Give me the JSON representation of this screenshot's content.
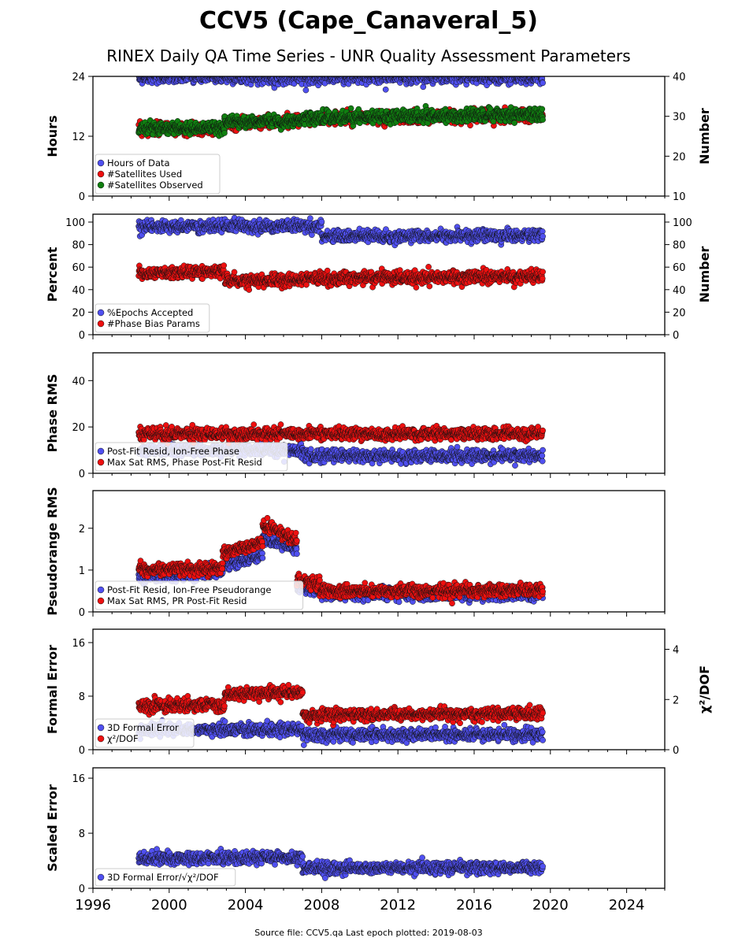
{
  "title": "CCV5 (Cape_Canaveral_5)",
  "subtitle": "RINEX Daily QA Time Series - UNR Quality Assessment Parameters",
  "footer": "Source file: CCV5.qa Last epoch plotted: 2019-08-03",
  "colors": {
    "blue": "#5050f0",
    "red": "#ee1010",
    "green": "#108010",
    "edge": "#111111"
  },
  "chart_data": [
    {
      "type": "scatter",
      "ylabel": "Hours",
      "y2label": "Number",
      "xlim": [
        1996,
        2026
      ],
      "xticks": [
        1996,
        2000,
        2004,
        2008,
        2012,
        2016,
        2020,
        2024
      ],
      "ylim": [
        0,
        24
      ],
      "yticks": [
        0,
        12,
        24
      ],
      "y2lim": [
        10,
        40
      ],
      "y2ticks": [
        10,
        20,
        30,
        40
      ],
      "legend_position": "lower-left",
      "series": [
        {
          "name": "Hours of Data",
          "color": "#5050f0",
          "axis": "left",
          "segments": [
            {
              "x": [
                1998.4,
                2019.6
              ],
              "y": [
                23.8,
                23.8
              ]
            }
          ]
        },
        {
          "name": "#Satellites Used",
          "color": "#ee1010",
          "axis": "right",
          "segments": [
            {
              "x": [
                1998.4,
                2002.9
              ],
              "y": [
                26.8,
                26.8
              ]
            },
            {
              "x": [
                2002.9,
                2007.0
              ],
              "y": [
                28.3,
                28.8
              ]
            },
            {
              "x": [
                2007.0,
                2019.6
              ],
              "y": [
                29.3,
                30.2
              ]
            }
          ]
        },
        {
          "name": "#Satellites Observed",
          "color": "#108010",
          "axis": "right",
          "segments": [
            {
              "x": [
                1998.4,
                2002.9
              ],
              "y": [
                27.0,
                27.0
              ]
            },
            {
              "x": [
                2002.9,
                2007.0
              ],
              "y": [
                28.5,
                29.0
              ]
            },
            {
              "x": [
                2007.0,
                2019.6
              ],
              "y": [
                29.6,
                30.5
              ]
            }
          ]
        }
      ]
    },
    {
      "type": "scatter",
      "ylabel": "Percent",
      "y2label": "Number",
      "xlim": [
        1996,
        2026
      ],
      "ylim": [
        0,
        107
      ],
      "yticks": [
        0,
        20,
        40,
        60,
        80,
        100
      ],
      "y2lim": [
        0,
        107
      ],
      "y2ticks": [
        0,
        20,
        40,
        60,
        80,
        100
      ],
      "legend_position": "lower-left",
      "series": [
        {
          "name": "%Epochs Accepted",
          "color": "#5050f0",
          "axis": "left",
          "segments": [
            {
              "x": [
                1998.4,
                2008.0
              ],
              "y": [
                96,
                96
              ]
            },
            {
              "x": [
                2008.0,
                2019.6
              ],
              "y": [
                87,
                88
              ]
            }
          ]
        },
        {
          "name": "#Phase Bias Params",
          "color": "#ee1010",
          "axis": "right",
          "segments": [
            {
              "x": [
                1998.4,
                2002.9
              ],
              "y": [
                54,
                56
              ]
            },
            {
              "x": [
                2002.9,
                2007.0
              ],
              "y": [
                48,
                48
              ]
            },
            {
              "x": [
                2007.0,
                2019.6
              ],
              "y": [
                50,
                52
              ]
            }
          ]
        }
      ]
    },
    {
      "type": "scatter",
      "ylabel": "Phase RMS",
      "xlim": [
        1996,
        2026
      ],
      "ylim": [
        0,
        52
      ],
      "yticks": [
        0,
        20,
        40
      ],
      "legend_position": "lower-left",
      "series": [
        {
          "name": "Post-Fit Resid, Ion-Free Phase",
          "color": "#5050f0",
          "axis": "left",
          "segments": [
            {
              "x": [
                1998.4,
                2007.0
              ],
              "y": [
                10,
                10
              ]
            },
            {
              "x": [
                2007.0,
                2019.6
              ],
              "y": [
                7.5,
                7.5
              ]
            }
          ]
        },
        {
          "name": "Max Sat RMS, Phase Post-Fit Resid",
          "color": "#ee1010",
          "axis": "left",
          "segments": [
            {
              "x": [
                1998.4,
                2019.6
              ],
              "y": [
                17,
                17
              ]
            }
          ]
        }
      ]
    },
    {
      "type": "scatter",
      "ylabel": "Pseudorange RMS",
      "xlim": [
        1996,
        2026
      ],
      "ylim": [
        0,
        2.9
      ],
      "yticks": [
        0,
        1,
        2
      ],
      "legend_position": "lower-left",
      "series": [
        {
          "name": "Post-Fit Resid, Ion-Free Pseudorange",
          "color": "#5050f0",
          "axis": "left",
          "segments": [
            {
              "x": [
                1998.4,
                2002.8
              ],
              "y": [
                0.85,
                0.95
              ]
            },
            {
              "x": [
                2002.8,
                2004.9
              ],
              "y": [
                1.1,
                1.35
              ]
            },
            {
              "x": [
                2004.9,
                2006.7
              ],
              "y": [
                1.8,
                1.5
              ]
            },
            {
              "x": [
                2006.7,
                2007.9
              ],
              "y": [
                0.6,
                0.55
              ]
            },
            {
              "x": [
                2007.9,
                2019.6
              ],
              "y": [
                0.42,
                0.42
              ]
            }
          ]
        },
        {
          "name": "Max Sat RMS, PR Post-Fit Resid",
          "color": "#ee1010",
          "axis": "left",
          "segments": [
            {
              "x": [
                1998.4,
                2002.8
              ],
              "y": [
                1.0,
                1.05
              ]
            },
            {
              "x": [
                2002.8,
                2004.9
              ],
              "y": [
                1.4,
                1.65
              ]
            },
            {
              "x": [
                2004.9,
                2006.7
              ],
              "y": [
                2.1,
                1.7
              ]
            },
            {
              "x": [
                2006.7,
                2007.9
              ],
              "y": [
                0.75,
                0.65
              ]
            },
            {
              "x": [
                2007.9,
                2019.6
              ],
              "y": [
                0.5,
                0.52
              ]
            }
          ]
        }
      ]
    },
    {
      "type": "scatter",
      "ylabel": "Formal Error",
      "y2label": "χ²/DOF",
      "xlim": [
        1996,
        2026
      ],
      "ylim": [
        0,
        18
      ],
      "yticks": [
        0,
        8,
        16
      ],
      "y2lim": [
        0,
        4.8
      ],
      "y2ticks": [
        0,
        2,
        4
      ],
      "legend_position": "lower-left",
      "series": [
        {
          "name": "3D Formal Error",
          "color": "#5050f0",
          "axis": "left",
          "segments": [
            {
              "x": [
                1998.4,
                2007.0
              ],
              "y": [
                3.0,
                3.0
              ]
            },
            {
              "x": [
                2007.0,
                2019.6
              ],
              "y": [
                2.2,
                2.2
              ]
            }
          ]
        },
        {
          "name": "χ²/DOF",
          "color": "#ee1010",
          "axis": "right",
          "segments": [
            {
              "x": [
                1998.4,
                2002.9
              ],
              "y": [
                1.75,
                1.8
              ]
            },
            {
              "x": [
                2002.9,
                2007.0
              ],
              "y": [
                2.2,
                2.3
              ]
            },
            {
              "x": [
                2007.0,
                2019.6
              ],
              "y": [
                1.35,
                1.45
              ]
            }
          ]
        }
      ]
    },
    {
      "type": "scatter",
      "ylabel": "Scaled Error",
      "xlim": [
        1996,
        2026
      ],
      "ylim": [
        0,
        17.5
      ],
      "yticks": [
        0,
        8,
        16
      ],
      "legend_position": "lower-left",
      "series": [
        {
          "name": "3D Formal Error/√χ²/DOF",
          "color": "#5050f0",
          "axis": "left",
          "segments": [
            {
              "x": [
                1998.4,
                2007.0
              ],
              "y": [
                4.3,
                4.5
              ]
            },
            {
              "x": [
                2007.0,
                2019.6
              ],
              "y": [
                2.9,
                3.0
              ]
            }
          ]
        }
      ]
    }
  ]
}
